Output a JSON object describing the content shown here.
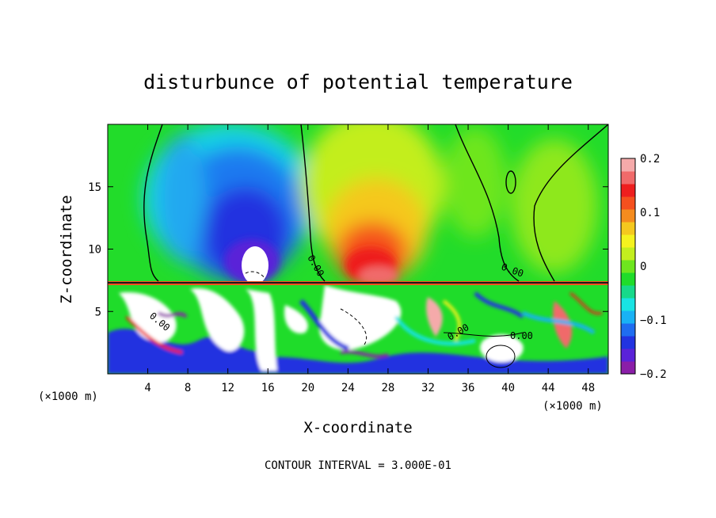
{
  "chart_data": {
    "type": "heatmap",
    "title": "disturbunce of potential temperature",
    "xlabel": "X-coordinate",
    "ylabel": "Z-coordinate",
    "x_unit_left": "(×1000 m)",
    "x_unit_right": "(×1000 m)",
    "xlim": [
      0,
      50
    ],
    "ylim": [
      0,
      20
    ],
    "xticks": [
      4,
      8,
      12,
      16,
      20,
      24,
      28,
      32,
      36,
      40,
      44,
      48
    ],
    "yticks": [
      5,
      10,
      15
    ],
    "colorbar": {
      "min": -0.2,
      "max": 0.2,
      "tick_values": [
        0.2,
        0.1,
        0,
        -0.1,
        -0.2
      ],
      "tick_labels": [
        "0.2",
        "0.1",
        "0",
        "−0.1",
        "−0.2"
      ],
      "colors": [
        "#8a1ea8",
        "#5a22d8",
        "#2233e0",
        "#1f6df0",
        "#19b2f5",
        "#19e3e3",
        "#17d98a",
        "#1fdc2a",
        "#6ee61e",
        "#c3ee1e",
        "#f5f21e",
        "#f5c81e",
        "#f58c1e",
        "#f5501e",
        "#ee1e1e",
        "#f06a6a",
        "#f5aaaa"
      ]
    },
    "contour_labels": [
      "0.00",
      "0.00",
      "0.00",
      "0.00",
      "0.00"
    ],
    "footer": "CONTOUR INTERVAL = 3.000E-01"
  }
}
